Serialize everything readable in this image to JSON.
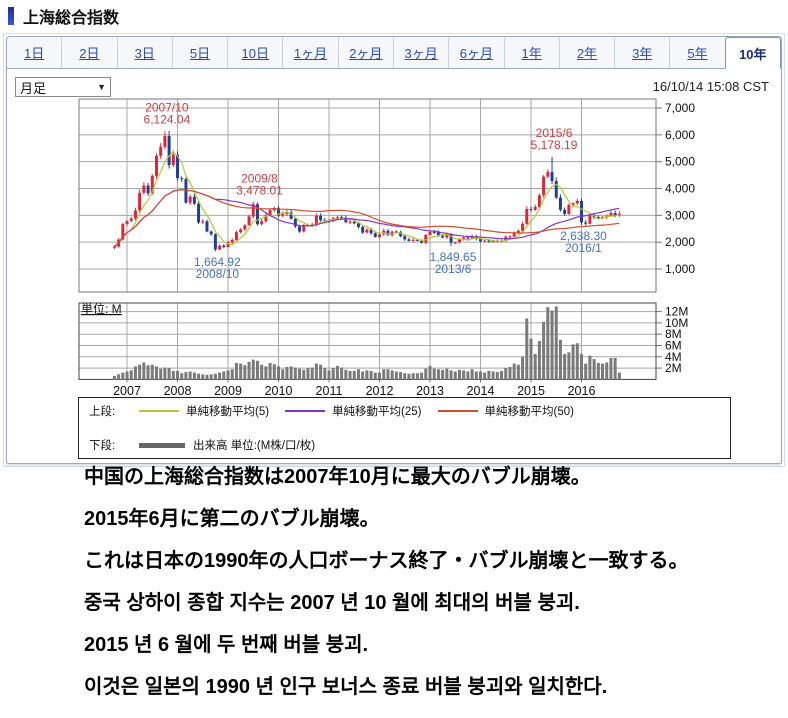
{
  "page": {
    "title": "上海総合指数"
  },
  "tabs": {
    "labels": [
      "1日",
      "2日",
      "3日",
      "5日",
      "10日",
      "1ヶ月",
      "2ヶ月",
      "3ヶ月",
      "6ヶ月",
      "1年",
      "2年",
      "3年",
      "5年",
      "10年"
    ],
    "active_label": "10年"
  },
  "toolbar": {
    "interval_selected": "月足",
    "timestamp": "16/10/14 15:08 CST"
  },
  "colors": {
    "candle_up": "#dc2836",
    "candle_down": "#223e99",
    "volume": "#7a7a7a",
    "volume_legend": "#666666",
    "grid": "#a8a8a8",
    "frame": "#777777",
    "frame_dark": "#444444",
    "ann_high": "#cc4044",
    "ann_low": "#4472c8",
    "accent_tab": "#1b2f77",
    "link": "#2a4cb4"
  },
  "chart_data": {
    "type": "candlestick+volume",
    "interval": "monthly",
    "months_start": "2006-10",
    "open_first": 1790,
    "y_ticks": [
      "7,000",
      "6,000",
      "5,000",
      "4,000",
      "3,000",
      "2,000",
      "1,000"
    ],
    "volume_ticks": [
      "12M",
      "10M",
      "8M",
      "6M",
      "4M",
      "2M"
    ],
    "x_ticks": [
      "2007",
      "2008",
      "2009",
      "2010",
      "2011",
      "2012",
      "2013",
      "2014",
      "2015",
      "2016"
    ],
    "unit_label": "単位: M",
    "closes": [
      1838,
      2099,
      2675,
      2786,
      2881,
      3184,
      3841,
      4109,
      3820,
      4471,
      5218,
      5552,
      5955,
      4871,
      5262,
      4383,
      4348,
      3472,
      3693,
      3433,
      2736,
      2775,
      2397,
      2294,
      1729,
      1871,
      1820,
      1991,
      2082,
      2373,
      2477,
      2632,
      2959,
      3412,
      2668,
      2779,
      2995,
      3195,
      3277,
      2989,
      3051,
      3109,
      2870,
      2592,
      2398,
      2637,
      2638,
      2655,
      2978,
      2820,
      2808,
      2790,
      2905,
      2928,
      2911,
      2743,
      2762,
      2701,
      2567,
      2359,
      2468,
      2333,
      2199,
      2292,
      2428,
      2262,
      2396,
      2372,
      2225,
      2103,
      2047,
      2086,
      2068,
      1980,
      2269,
      2385,
      2365,
      2236,
      2177,
      2300,
      1979,
      1993,
      2098,
      2174,
      2141,
      2220,
      2116,
      2033,
      2056,
      2033,
      2026,
      2039,
      2048,
      2201,
      2217,
      2363,
      2420,
      2682,
      3234,
      3210,
      3310,
      3747,
      4441,
      4611,
      4277,
      3663,
      3205,
      3052,
      3382,
      3445,
      3539,
      2737,
      2687,
      3003,
      2938,
      2916,
      2929,
      2979,
      3085,
      3004,
      3058
    ],
    "volumes_M": [
      0.6,
      0.9,
      1.2,
      1.4,
      1.6,
      2.3,
      2.6,
      3.0,
      2.5,
      2.6,
      2.3,
      1.9,
      2.1,
      2.0,
      1.5,
      1.5,
      1.1,
      1.3,
      1.4,
      1.2,
      1.0,
      0.9,
      0.8,
      0.9,
      1.0,
      1.2,
      1.4,
      1.6,
      1.8,
      2.9,
      2.8,
      2.5,
      3.1,
      3.5,
      3.3,
      2.6,
      2.3,
      2.9,
      2.7,
      2.3,
      1.8,
      2.2,
      2.3,
      2.1,
      1.9,
      1.7,
      2.0,
      2.1,
      2.8,
      2.6,
      2.0,
      1.6,
      2.0,
      2.4,
      2.1,
      1.7,
      1.5,
      1.5,
      1.8,
      1.4,
      1.6,
      1.5,
      1.2,
      1.2,
      1.8,
      1.8,
      1.6,
      1.4,
      1.3,
      1.1,
      1.0,
      1.1,
      1.1,
      1.2,
      1.9,
      2.4,
      1.9,
      1.8,
      1.7,
      1.9,
      1.6,
      1.4,
      1.7,
      1.6,
      1.4,
      1.8,
      1.4,
      1.4,
      1.2,
      1.5,
      1.4,
      1.3,
      1.5,
      2.0,
      2.2,
      2.8,
      2.6,
      4.0,
      10.8,
      7.2,
      4.5,
      6.8,
      10.2,
      12.8,
      12.2,
      12.9,
      7.0,
      4.5,
      4.8,
      6.2,
      6.4,
      4.5,
      2.8,
      4.2,
      3.6,
      2.9,
      2.8,
      3.0,
      3.8,
      3.8,
      1.2
    ],
    "extremes": [
      {
        "index": 12,
        "kind": "high",
        "value": 6124.04,
        "lines": [
          "2007/10",
          "6,124.04"
        ]
      },
      {
        "index": 24,
        "kind": "low",
        "value": 1664.92,
        "lines": [
          "1,664.92",
          "2008/10"
        ]
      },
      {
        "index": 34,
        "kind": "high",
        "value": 3478.01,
        "lines": [
          "2009/8",
          "3,478.01"
        ]
      },
      {
        "index": 80,
        "kind": "low",
        "value": 1849.65,
        "lines": [
          "1,849.65",
          "2013/6"
        ]
      },
      {
        "index": 104,
        "kind": "high",
        "value": 5178.19,
        "lines": [
          "2015/6",
          "5,178.19"
        ]
      },
      {
        "index": 111,
        "kind": "low",
        "value": 2638.3,
        "lines": [
          "2,638.30",
          "2016/1"
        ]
      }
    ],
    "moving_averages": [
      {
        "name": "単純移動平均(5)",
        "window": 5,
        "color": "#b8c832"
      },
      {
        "name": "単純移動平均(25)",
        "window": 25,
        "color": "#8833cc"
      },
      {
        "name": "単純移動平均(50)",
        "window": 50,
        "color": "#cc5030"
      }
    ]
  },
  "legend": {
    "row1_label": "上段:",
    "row2_label": "下段:",
    "volume_label": "出来高 単位:(M株/口/枚)"
  },
  "notes": {
    "japanese": [
      "中国の上海総合指数は2007年10月に最大のバブル崩壊。",
      "2015年6月に第二のバブル崩壊。",
      "これは日本の1990年の人口ボーナス終了・バブル崩壊と一致する。"
    ],
    "korean": [
      "중국 상하이 종합 지수는 2007 년 10 월에 최대의 버블 붕괴.",
      "2015 년 6 월에 두 번째 버블 붕괴.",
      "이것은 일본의 1990 년 인구 보너스 종료 버블 붕괴와 일치한다."
    ]
  }
}
